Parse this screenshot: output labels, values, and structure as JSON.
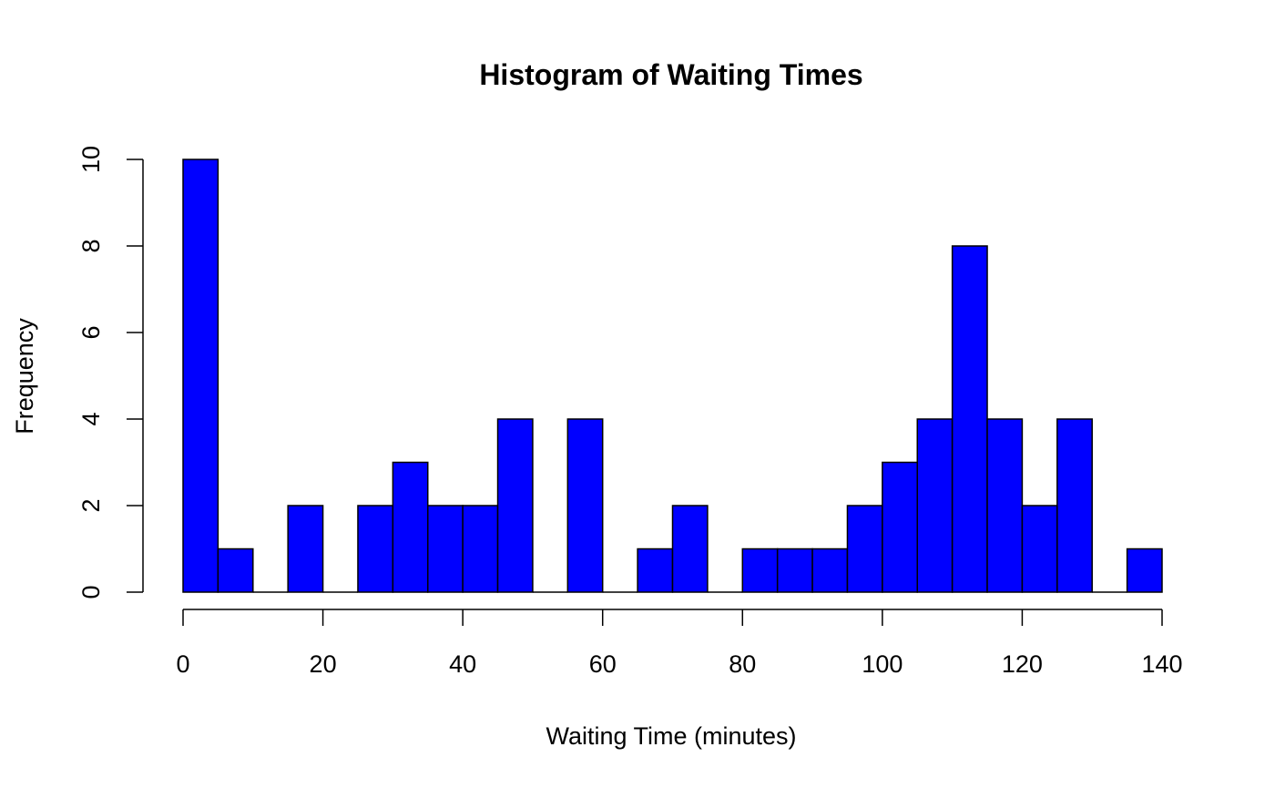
{
  "chart_data": {
    "type": "bar",
    "subtype": "histogram",
    "title": "Histogram of Waiting Times",
    "xlabel": "Waiting Time (minutes)",
    "ylabel": "Frequency",
    "bin_width": 5,
    "bins": [
      [
        0,
        5
      ],
      [
        5,
        10
      ],
      [
        10,
        15
      ],
      [
        15,
        20
      ],
      [
        20,
        25
      ],
      [
        25,
        30
      ],
      [
        30,
        35
      ],
      [
        35,
        40
      ],
      [
        40,
        45
      ],
      [
        45,
        50
      ],
      [
        50,
        55
      ],
      [
        55,
        60
      ],
      [
        60,
        65
      ],
      [
        65,
        70
      ],
      [
        70,
        75
      ],
      [
        75,
        80
      ],
      [
        80,
        85
      ],
      [
        85,
        90
      ],
      [
        90,
        95
      ],
      [
        95,
        100
      ],
      [
        100,
        105
      ],
      [
        105,
        110
      ],
      [
        110,
        115
      ],
      [
        115,
        120
      ],
      [
        120,
        125
      ],
      [
        125,
        130
      ],
      [
        130,
        135
      ],
      [
        135,
        140
      ]
    ],
    "values": [
      10,
      1,
      0,
      2,
      0,
      2,
      3,
      2,
      2,
      4,
      0,
      4,
      0,
      1,
      2,
      0,
      1,
      1,
      1,
      2,
      3,
      4,
      8,
      4,
      2,
      4,
      0,
      1
    ],
    "xlim": [
      0,
      140
    ],
    "ylim": [
      0,
      10
    ],
    "x_ticks": [
      "0",
      "20",
      "40",
      "60",
      "80",
      "100",
      "120",
      "140"
    ],
    "y_ticks": [
      "0",
      "2",
      "4",
      "6",
      "8",
      "10"
    ],
    "bar_color": "#0000FF",
    "border_color": "#000000",
    "grid": false,
    "legend": "none"
  }
}
